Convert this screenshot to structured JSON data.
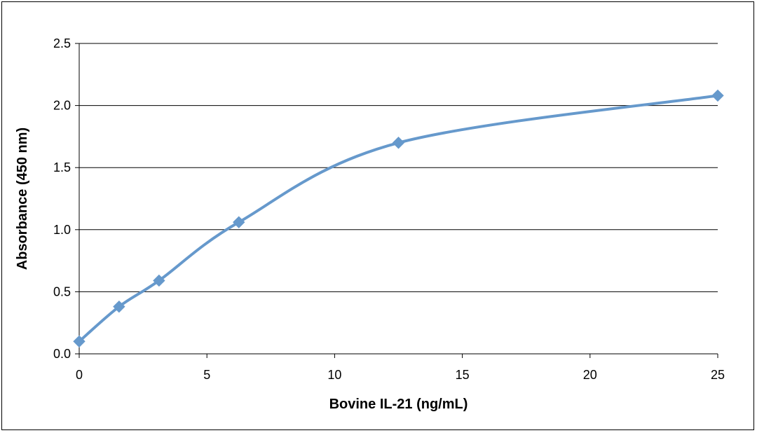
{
  "chart_data": {
    "type": "line",
    "title": "",
    "xlabel": "Bovine IL-21 (ng/mL)",
    "ylabel": "Absorbance  (450 nm)",
    "xlim": [
      0,
      25
    ],
    "ylim": [
      0,
      2.5
    ],
    "x_ticks": [
      "0",
      "5",
      "10",
      "15",
      "20",
      "25"
    ],
    "y_ticks": [
      "0.0",
      "0.5",
      "1.0",
      "1.5",
      "2.0",
      "2.5"
    ],
    "grid": "horizontal",
    "legend": "none",
    "line_style": "smooth",
    "marker": "diamond",
    "series": [
      {
        "color": "#6699CC",
        "x": [
          0,
          1.56,
          3.125,
          6.25,
          12.5,
          25
        ],
        "y": [
          0.1,
          0.38,
          0.59,
          1.06,
          1.7,
          2.08
        ]
      }
    ]
  }
}
